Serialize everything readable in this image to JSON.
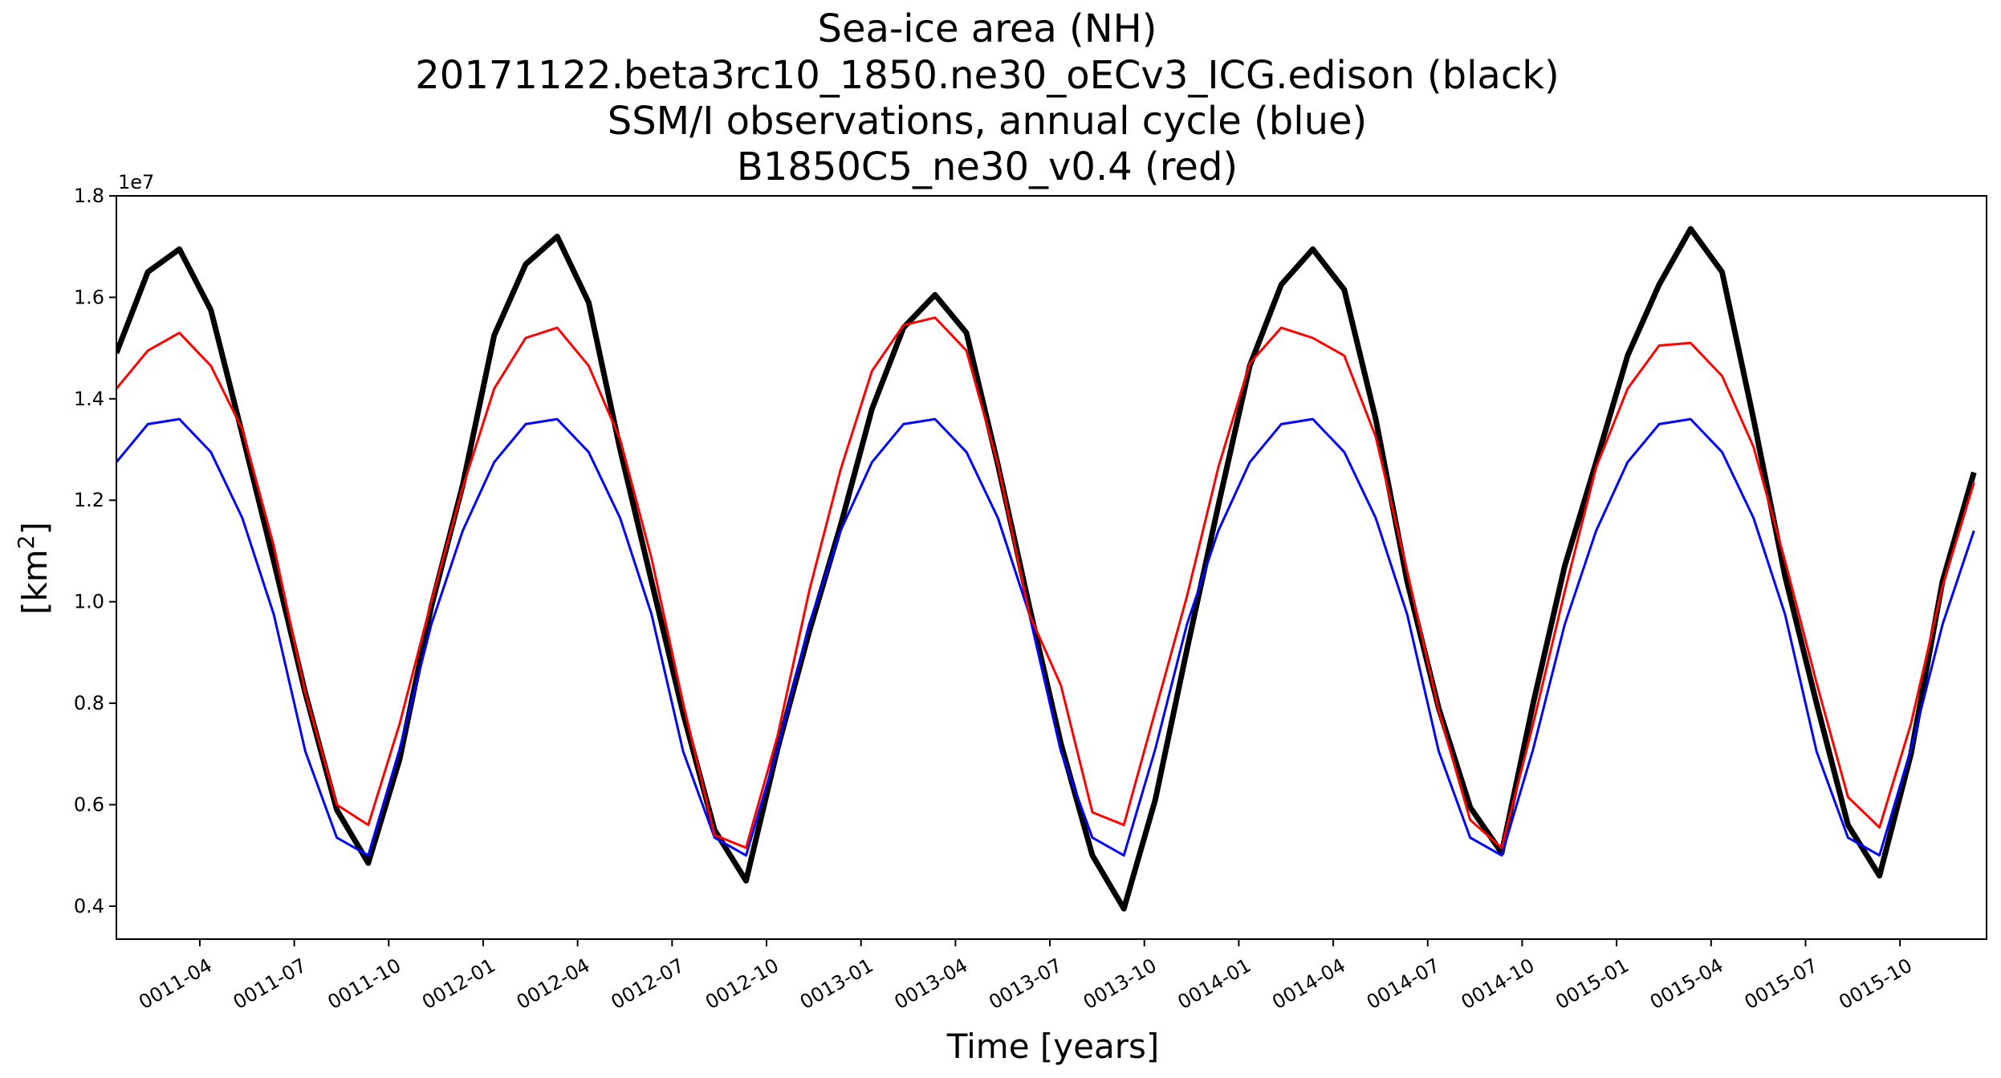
{
  "chart_data": {
    "type": "line",
    "title_lines": [
      "Sea-ice area (NH)",
      "20171122.beta3rc10_1850.ne30_oECv3_ICG.edison (black)",
      "SSM/I observations, annual cycle (blue)",
      "B1850C5_ne30_v0.4 (red)"
    ],
    "xlabel": "Time [years]",
    "ylabel_text": "[km",
    "ylabel_sup": "2",
    "ylabel_close": "]",
    "y_offset_label": "1e7",
    "ylim": [
      3.35,
      18.0
    ],
    "xlim": [
      0,
      59.4
    ],
    "y_ticks": [
      4,
      6,
      8,
      10,
      12,
      14,
      16,
      18
    ],
    "y_tick_labels": [
      "0.4",
      "0.6",
      "0.8",
      "1.0",
      "1.2",
      "1.4",
      "1.6",
      "1.8"
    ],
    "x_ticks": [
      2.65,
      5.65,
      8.65,
      11.65,
      14.65,
      17.65,
      20.65,
      23.65,
      26.65,
      29.65,
      32.65,
      35.65,
      38.65,
      41.65,
      44.65,
      47.65,
      50.65,
      53.65,
      56.65
    ],
    "x_tick_labels": [
      "0011-04",
      "0011-07",
      "0011-10",
      "0012-01",
      "0012-04",
      "0012-07",
      "0012-10",
      "0013-01",
      "0013-04",
      "0013-07",
      "0013-10",
      "0014-01",
      "0014-04",
      "0014-07",
      "0014-10",
      "0015-01",
      "0015-04",
      "0015-07",
      "0015-10"
    ],
    "x_index": [
      0,
      1,
      2,
      3,
      4,
      5,
      6,
      7,
      8,
      9,
      10,
      11,
      12,
      13,
      14,
      15,
      16,
      17,
      18,
      19,
      20,
      21,
      22,
      23,
      24,
      25,
      26,
      27,
      28,
      29,
      30,
      31,
      32,
      33,
      34,
      35,
      36,
      37,
      38,
      39,
      40,
      41,
      42,
      43,
      44,
      45,
      46,
      47,
      48,
      49,
      50,
      51,
      52,
      53,
      54,
      55,
      56,
      57,
      58,
      59
    ],
    "grid": false,
    "series": [
      {
        "name": "20171122.beta3rc10_1850.ne30_oECv3_ICG.edison",
        "color": "#000000",
        "values": [
          14.9,
          16.5,
          16.95,
          15.75,
          13.3,
          10.8,
          8.2,
          5.9,
          4.85,
          6.9,
          9.9,
          12.3,
          15.25,
          16.65,
          17.2,
          15.9,
          13.0,
          10.4,
          7.8,
          5.5,
          4.5,
          7.1,
          9.4,
          11.5,
          13.8,
          15.4,
          16.05,
          15.3,
          12.7,
          9.9,
          7.2,
          5.0,
          3.95,
          6.1,
          9.05,
          11.9,
          14.65,
          16.25,
          16.95,
          16.15,
          13.6,
          10.4,
          7.9,
          5.95,
          5.05,
          8.0,
          10.7,
          12.75,
          14.85,
          16.25,
          17.35,
          16.5,
          13.6,
          10.5,
          8.0,
          5.6,
          4.6,
          7.0,
          10.4,
          12.55
        ]
      },
      {
        "name": "SSM/I observations, annual cycle",
        "color": "#0000ff",
        "values": [
          12.75,
          13.5,
          13.6,
          12.95,
          11.65,
          9.75,
          7.05,
          5.35,
          5.0,
          7.1,
          9.55,
          11.4,
          12.75,
          13.5,
          13.6,
          12.95,
          11.65,
          9.75,
          7.05,
          5.35,
          5.0,
          7.1,
          9.55,
          11.4,
          12.75,
          13.5,
          13.6,
          12.95,
          11.65,
          9.75,
          7.05,
          5.35,
          5.0,
          7.1,
          9.55,
          11.4,
          12.75,
          13.5,
          13.6,
          12.95,
          11.65,
          9.75,
          7.05,
          5.35,
          5.0,
          7.1,
          9.55,
          11.4,
          12.75,
          13.5,
          13.6,
          12.95,
          11.65,
          9.75,
          7.05,
          5.35,
          5.0,
          7.1,
          9.55,
          11.4
        ]
      },
      {
        "name": "B1850C5_ne30_v0.4",
        "color": "#ff0000",
        "values": [
          14.2,
          14.95,
          15.3,
          14.65,
          13.4,
          11.1,
          8.2,
          6.0,
          5.6,
          7.6,
          10.0,
          12.25,
          14.2,
          15.2,
          15.4,
          14.65,
          13.2,
          10.85,
          8.0,
          5.4,
          5.15,
          7.35,
          10.2,
          12.6,
          14.55,
          15.45,
          15.6,
          14.95,
          12.7,
          9.75,
          8.35,
          5.85,
          5.6,
          7.85,
          10.1,
          12.65,
          14.7,
          15.4,
          15.2,
          14.85,
          13.25,
          10.6,
          7.85,
          5.7,
          5.15,
          7.6,
          10.2,
          12.65,
          14.2,
          15.05,
          15.1,
          14.45,
          13.05,
          10.8,
          8.4,
          6.15,
          5.55,
          7.6,
          10.3,
          12.35
        ]
      }
    ]
  }
}
